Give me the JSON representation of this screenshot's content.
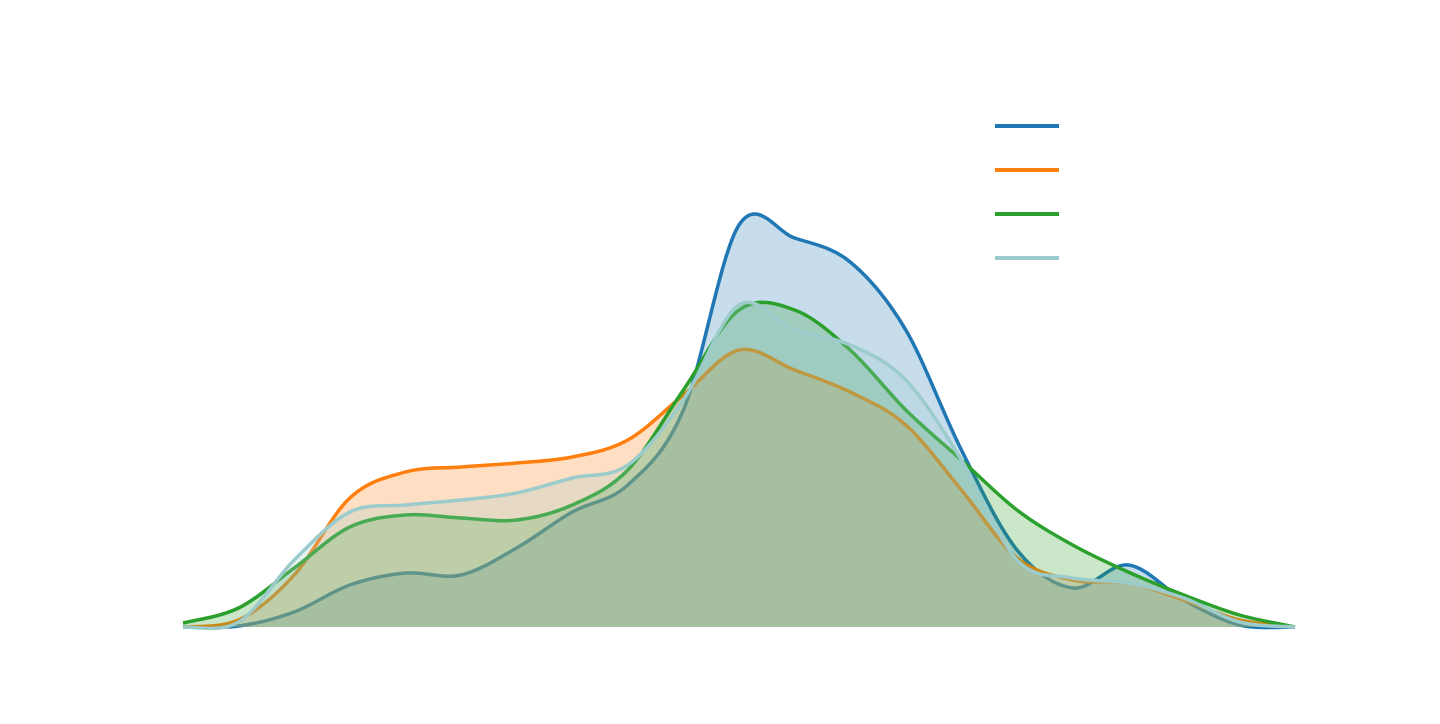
{
  "chart_data": {
    "type": "area",
    "x": [
      0,
      5,
      10,
      15,
      20,
      25,
      30,
      35,
      40,
      45,
      50,
      55,
      60,
      65,
      70,
      75,
      80,
      85,
      90,
      95,
      100
    ],
    "xlim": [
      0,
      100
    ],
    "ylim": [
      0,
      100
    ],
    "legend": "upper right",
    "series": [
      {
        "color": "#1f77b4",
        "values": [
          0,
          0.2,
          3,
          8.4,
          10.8,
          10.4,
          15.8,
          23,
          28.4,
          43.4,
          80.4,
          77.8,
          73,
          59.4,
          35.4,
          15.4,
          7.8,
          12.4,
          5.4,
          0.4,
          0
        ]
      },
      {
        "color": "#ff7f0e",
        "values": [
          0,
          1.4,
          10.4,
          25.8,
          31,
          32,
          32.8,
          34,
          37.4,
          46.4,
          55.4,
          51.4,
          47,
          40.4,
          27.4,
          13.8,
          9.4,
          8.8,
          5.4,
          1.4,
          0
        ]
      },
      {
        "color": "#2ca02c",
        "values": [
          0.8,
          3.8,
          11.8,
          20,
          22.4,
          21.8,
          21.4,
          24.4,
          31.4,
          47.4,
          63.4,
          63.4,
          55.4,
          43.4,
          33.4,
          23.4,
          16.4,
          11,
          6.4,
          2.4,
          0
        ]
      },
      {
        "color": "#9ccbcb",
        "values": [
          0,
          1,
          13.4,
          23,
          24.4,
          25.4,
          26.8,
          29.8,
          32.4,
          45.4,
          64.4,
          59.4,
          56.4,
          49.4,
          33.4,
          13.4,
          9.8,
          8.8,
          5.8,
          1,
          0
        ]
      }
    ]
  }
}
